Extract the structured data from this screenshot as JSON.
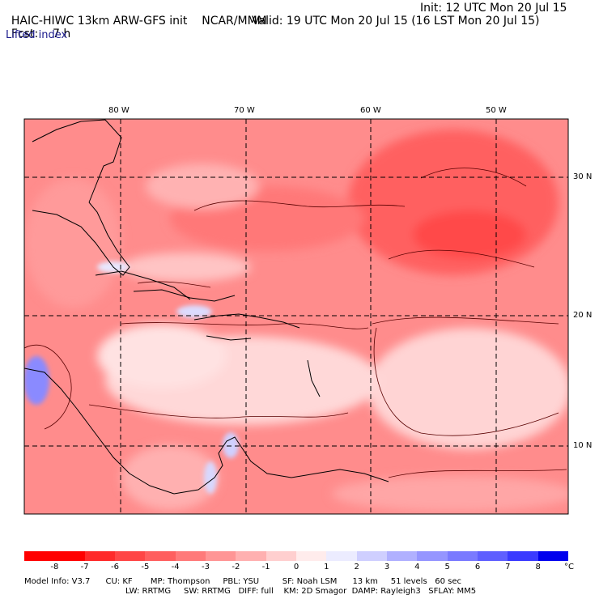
{
  "header": {
    "model": "HAIC-HIWC 13km ARW-GFS init",
    "org": "NCAR/MMM",
    "init": "Init: 12 UTC Mon 20 Jul 15",
    "fcst_label": "Fcst:",
    "fcst_value": "7 h",
    "valid": "Valid: 19 UTC Mon 20 Jul 15 (16 LST Mon 20 Jul 15)",
    "field": "Lifted index"
  },
  "map": {
    "lon_labels": [
      "80 W",
      "70 W",
      "60 W",
      "50 W"
    ],
    "lat_labels": [
      "30 N",
      "20 N",
      "10 N"
    ]
  },
  "colorbar": {
    "labels": [
      "-8",
      "-7",
      "-6",
      "-5",
      "-4",
      "-3",
      "-2",
      "-1",
      "0",
      "1",
      "2",
      "3",
      "4",
      "5",
      "6",
      "7",
      "8"
    ],
    "unit": "°C",
    "colors": [
      "#ff0000",
      "#ff2a2a",
      "#ff4646",
      "#ff5f5f",
      "#ff7a7a",
      "#ff9595",
      "#ffb0b0",
      "#ffcfcf",
      "#ffecec",
      "#ececff",
      "#cfcfff",
      "#b0b0ff",
      "#9595ff",
      "#7a7aff",
      "#5f5fff",
      "#3a3aff",
      "#0000ee"
    ]
  },
  "model_info": {
    "line1": "Model Info: V3.7      CU: KF       MP: Thompson     PBL: YSU         SF: Noah LSM      13 km     51 levels   60 sec",
    "line2": "LW: RRTMG     SW: RRTMG   DIFF: full    KM: 2D Smagor  DAMP: Rayleigh3   SFLAY: MM5"
  }
}
